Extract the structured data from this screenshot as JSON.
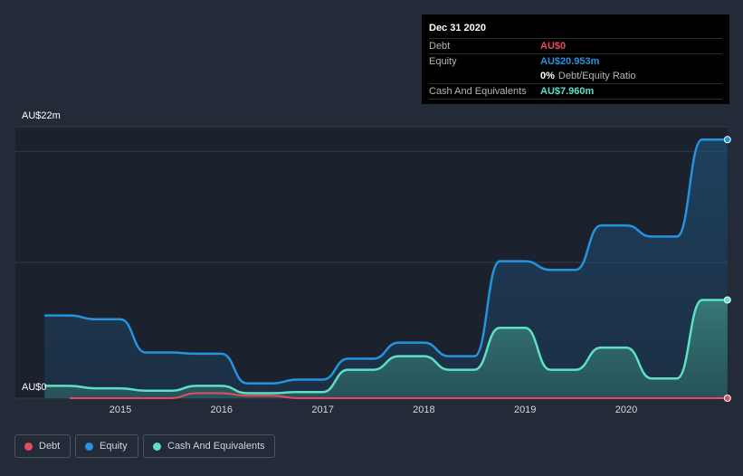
{
  "tooltip": {
    "date": "Dec 31 2020",
    "debt_label": "Debt",
    "debt_value": "AU$0",
    "equity_label": "Equity",
    "equity_value": "AU$20.953m",
    "ratio_value": "0%",
    "ratio_label": "Debt/Equity Ratio",
    "cash_label": "Cash And Equivalents",
    "cash_value": "AU$7.960m"
  },
  "colors": {
    "debt": "#e84c5a",
    "equity": "#2394df",
    "cash": "#5ce0c8",
    "background": "#232a38"
  },
  "chart_data": {
    "type": "area",
    "title": "",
    "xlabel": "",
    "ylabel": "",
    "y_min_label": "AU$0",
    "y_max_label": "AU$22m",
    "ylim": [
      0,
      22
    ],
    "xlim": [
      2014.25,
      2021.0
    ],
    "x_ticks": [
      "2015",
      "2016",
      "2017",
      "2018",
      "2019",
      "2020"
    ],
    "series": [
      {
        "name": "Debt",
        "x": [
          2014.5,
          2015.5,
          2015.75,
          2016.0,
          2016.25,
          2016.5,
          2016.75,
          2017.0,
          2018.0,
          2019.0,
          2020.0,
          2021.0
        ],
        "values": [
          0,
          0,
          0.4,
          0.4,
          0.2,
          0.2,
          0,
          0,
          0,
          0,
          0,
          0
        ]
      },
      {
        "name": "Equity",
        "x": [
          2014.25,
          2014.5,
          2014.75,
          2015.0,
          2015.25,
          2015.5,
          2015.75,
          2016.0,
          2016.25,
          2016.5,
          2016.75,
          2017.0,
          2017.25,
          2017.5,
          2017.75,
          2018.0,
          2018.25,
          2018.5,
          2018.75,
          2019.0,
          2019.25,
          2019.5,
          2019.75,
          2020.0,
          2020.25,
          2020.5,
          2020.75,
          2021.0
        ],
        "values": [
          6.7,
          6.7,
          6.4,
          6.4,
          3.7,
          3.7,
          3.6,
          3.6,
          1.2,
          1.2,
          1.5,
          1.5,
          3.2,
          3.2,
          4.5,
          4.5,
          3.4,
          3.4,
          11.1,
          11.1,
          10.4,
          10.4,
          14.0,
          14.0,
          13.1,
          13.1,
          20.953,
          20.953
        ]
      },
      {
        "name": "Cash And Equivalents",
        "x": [
          2014.25,
          2014.5,
          2014.75,
          2015.0,
          2015.25,
          2015.5,
          2015.75,
          2016.0,
          2016.25,
          2016.5,
          2016.75,
          2017.0,
          2017.25,
          2017.5,
          2017.75,
          2018.0,
          2018.25,
          2018.5,
          2018.75,
          2019.0,
          2019.25,
          2019.5,
          2019.75,
          2020.0,
          2020.25,
          2020.5,
          2020.75,
          2021.0
        ],
        "values": [
          1.0,
          1.0,
          0.8,
          0.8,
          0.6,
          0.6,
          1.0,
          1.0,
          0.4,
          0.4,
          0.5,
          0.5,
          2.3,
          2.3,
          3.4,
          3.4,
          2.3,
          2.3,
          5.7,
          5.7,
          2.3,
          2.3,
          4.1,
          4.1,
          1.6,
          1.6,
          7.96,
          7.96
        ]
      }
    ],
    "legend": [
      "Debt",
      "Equity",
      "Cash And Equivalents"
    ],
    "legend_position": "bottom-left"
  }
}
